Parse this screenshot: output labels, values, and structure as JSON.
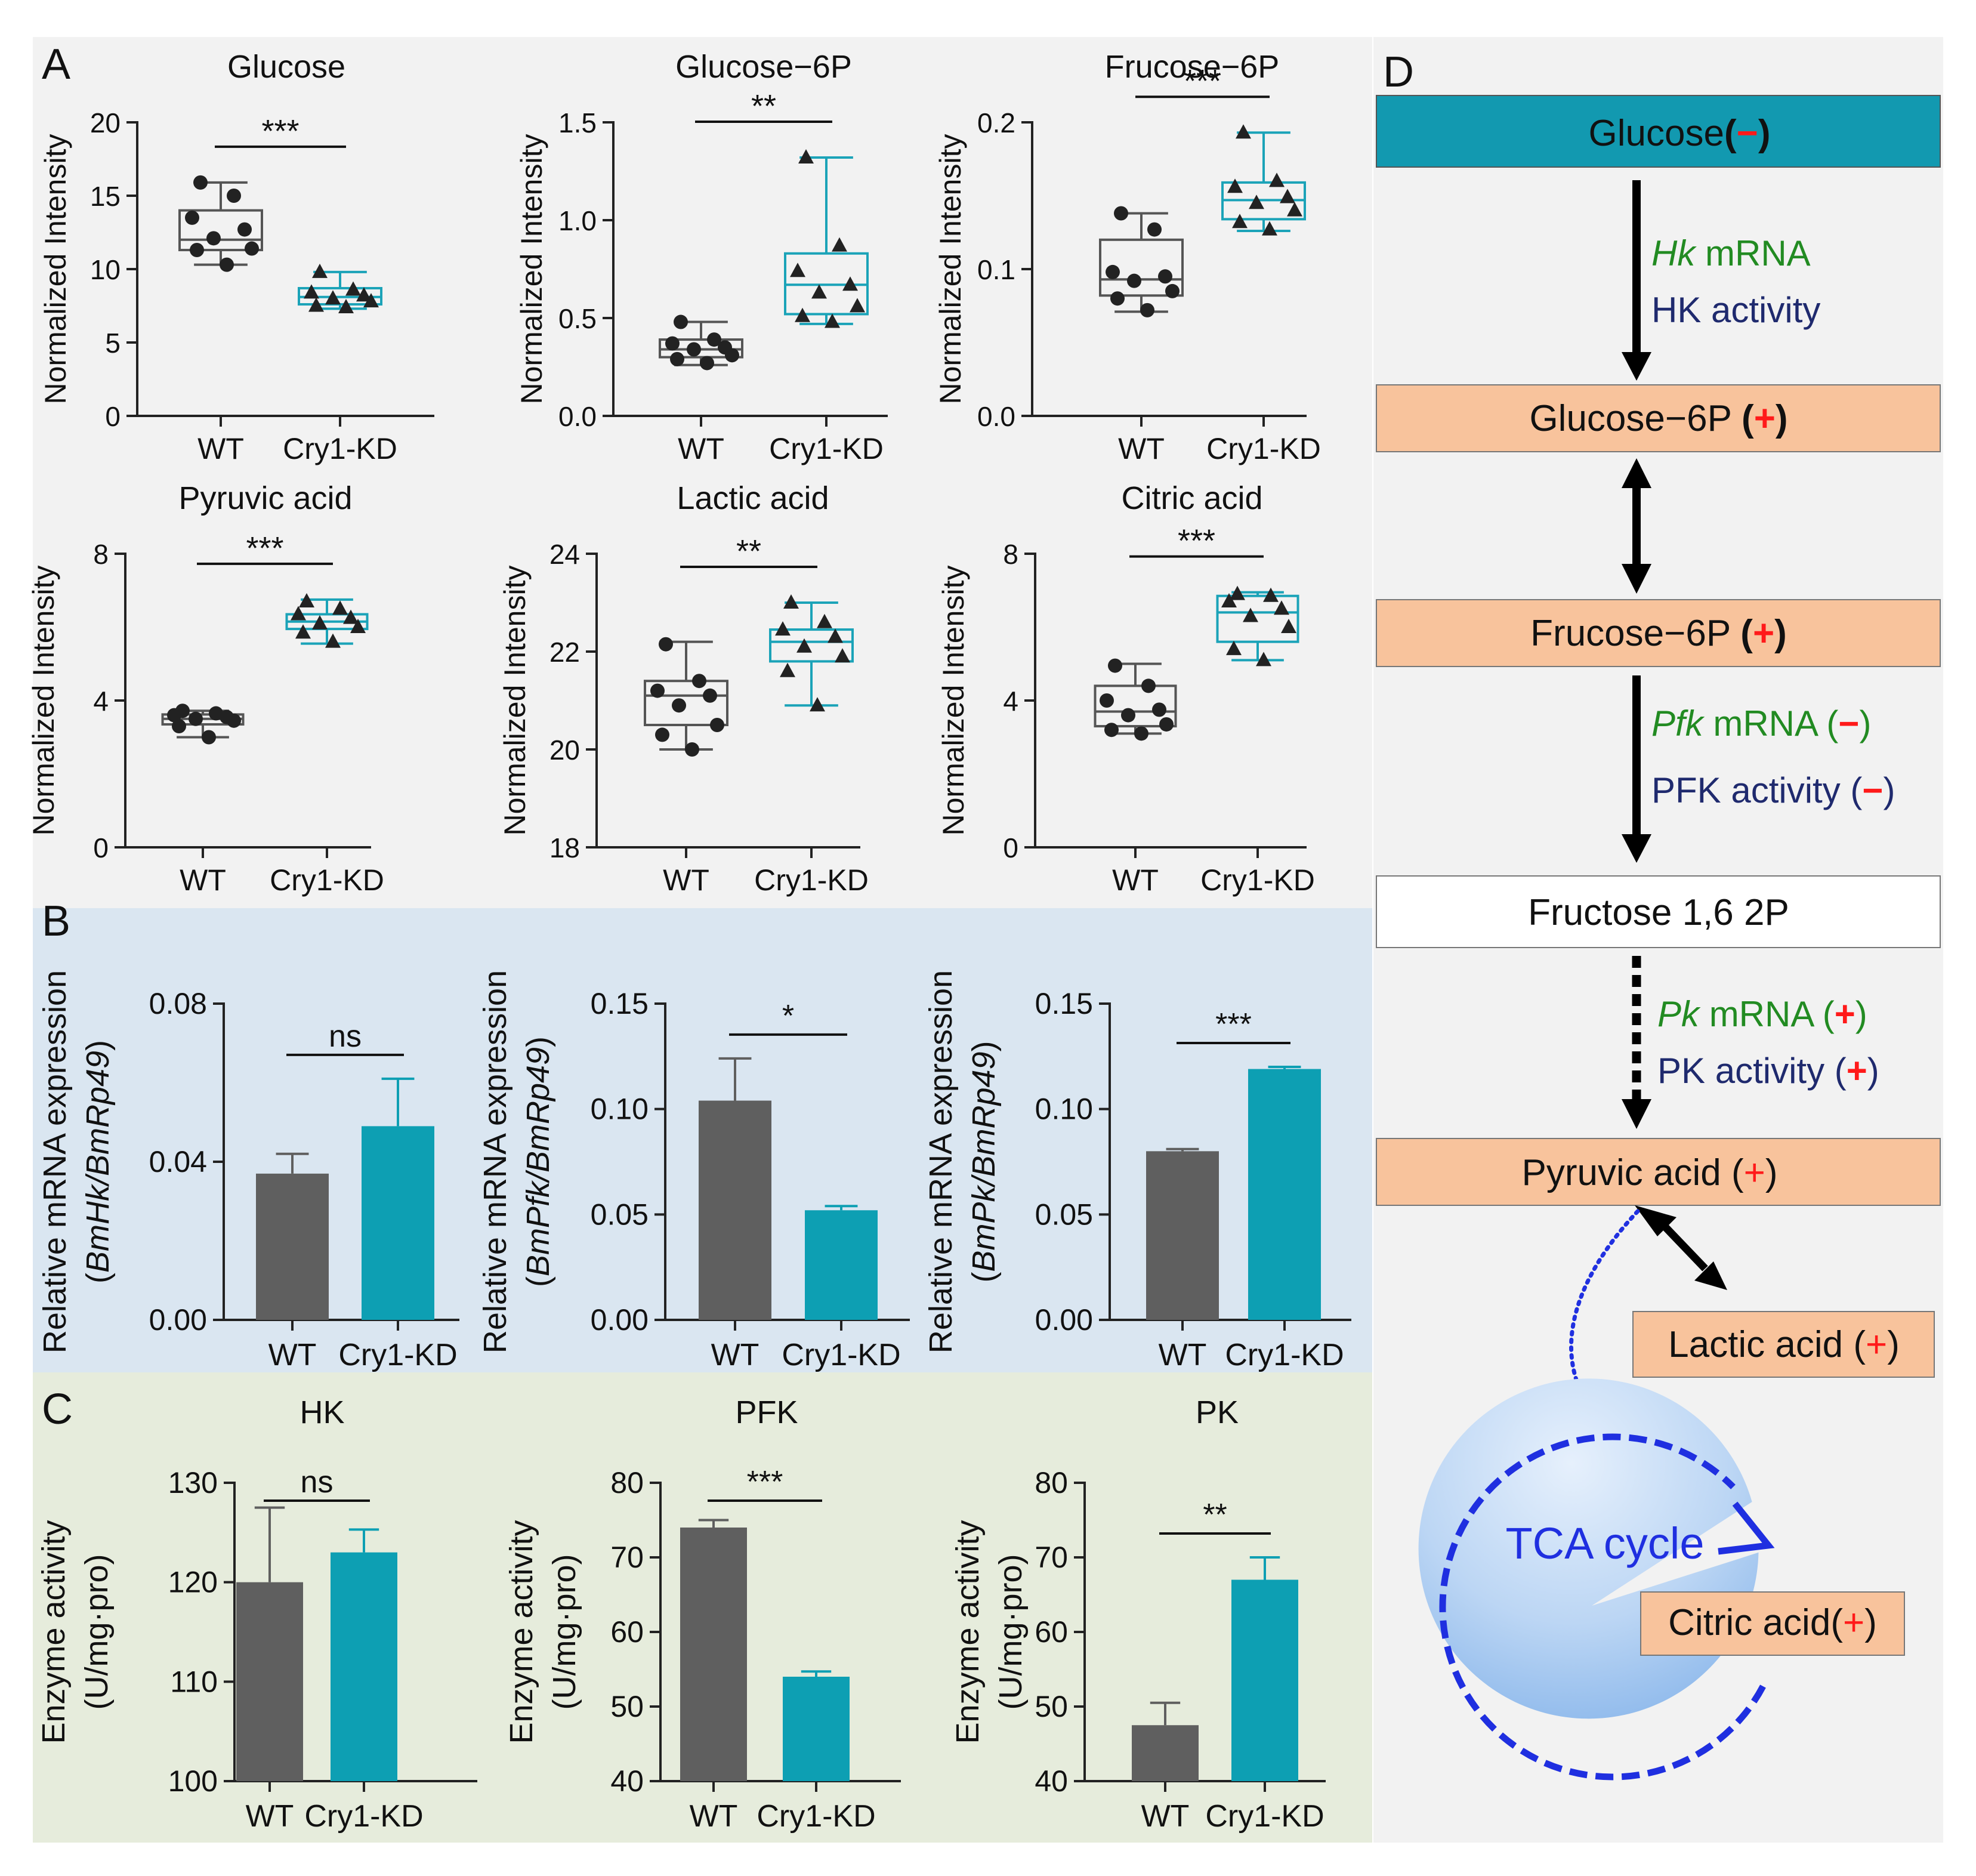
{
  "panel_labels": {
    "a": "A",
    "b": "B",
    "c": "C",
    "d": "D"
  },
  "colors": {
    "wt": "#5f5f5f",
    "kd": "#0d9fb3",
    "box_wt": "#555555",
    "box_kd": "#1ba3b8",
    "panel_a_bg": "#f2f2f2",
    "panel_b_bg": "#dae6f1",
    "panel_c_bg": "#e6ecdc",
    "panel_d_bg": "#f2f2f2",
    "glucose_box": "#1299b0",
    "metabolite_box": "#f8c39c",
    "fructose_box": "#ffffff",
    "tca": "#1f2fe0",
    "plus_minus": "#ff1a1a",
    "mrna_text": "#228b22",
    "activity_text": "#1f2a6e"
  },
  "chart_data": [
    {
      "type": "box",
      "title": "Glucose",
      "ylabel": "Normalized Intensity",
      "categories": [
        "WT",
        "Cry1-KD"
      ],
      "ylim": [
        0,
        20
      ],
      "yticks": [
        0,
        5,
        10,
        15,
        20
      ],
      "ytick_labels": [
        "0",
        "5",
        "10",
        "15",
        "20"
      ],
      "significance": "***",
      "series": [
        {
          "name": "WT",
          "marker": "circle",
          "box": {
            "min": 10.3,
            "q1": 11.3,
            "median": 12.0,
            "q3": 14.0,
            "max": 15.9
          },
          "points": [
            15.9,
            15.0,
            13.5,
            12.7,
            12.1,
            11.4,
            11.3,
            10.3
          ]
        },
        {
          "name": "Cry1-KD",
          "marker": "triangle",
          "box": {
            "min": 7.3,
            "q1": 7.6,
            "median": 8.1,
            "q3": 8.7,
            "max": 9.8
          },
          "points": [
            9.8,
            8.6,
            8.4,
            8.2,
            8.0,
            7.8,
            7.5,
            7.4
          ]
        }
      ]
    },
    {
      "type": "box",
      "title": "Glucose−6P",
      "ylabel": "Normalized Intensity",
      "categories": [
        "WT",
        "Cry1-KD"
      ],
      "ylim": [
        0,
        1.5
      ],
      "yticks": [
        0,
        0.5,
        1.0,
        1.5
      ],
      "ytick_labels": [
        "0.0",
        "0.5",
        "1.0",
        "1.5"
      ],
      "significance": "**",
      "series": [
        {
          "name": "WT",
          "marker": "circle",
          "box": {
            "min": 0.26,
            "q1": 0.3,
            "median": 0.34,
            "q3": 0.39,
            "max": 0.48
          },
          "points": [
            0.48,
            0.39,
            0.37,
            0.35,
            0.34,
            0.31,
            0.29,
            0.27
          ]
        },
        {
          "name": "Cry1-KD",
          "marker": "triangle",
          "box": {
            "min": 0.47,
            "q1": 0.52,
            "median": 0.67,
            "q3": 0.83,
            "max": 1.32
          },
          "points": [
            1.32,
            0.87,
            0.74,
            0.67,
            0.63,
            0.56,
            0.51,
            0.48
          ]
        }
      ]
    },
    {
      "type": "box",
      "title": "Frucose−6P",
      "ylabel": "Normalized Intensity",
      "categories": [
        "WT",
        "Cry1-KD"
      ],
      "ylim": [
        0,
        0.2
      ],
      "yticks": [
        0,
        0.1,
        0.2
      ],
      "ytick_labels": [
        "0.0",
        "0.1",
        "0.2"
      ],
      "significance": "***",
      "series": [
        {
          "name": "WT",
          "marker": "circle",
          "box": {
            "min": 0.071,
            "q1": 0.082,
            "median": 0.093,
            "q3": 0.12,
            "max": 0.138
          },
          "points": [
            0.138,
            0.127,
            0.098,
            0.095,
            0.092,
            0.085,
            0.08,
            0.072
          ]
        },
        {
          "name": "Cry1-KD",
          "marker": "triangle",
          "box": {
            "min": 0.126,
            "q1": 0.134,
            "median": 0.147,
            "q3": 0.159,
            "max": 0.193
          },
          "points": [
            0.193,
            0.16,
            0.156,
            0.149,
            0.145,
            0.14,
            0.132,
            0.127
          ]
        }
      ]
    },
    {
      "type": "box",
      "title": "Pyruvic acid",
      "ylabel": "Normalized Intensity",
      "categories": [
        "WT",
        "Cry1-KD"
      ],
      "ylim": [
        0,
        8
      ],
      "yticks": [
        0,
        4,
        8
      ],
      "ytick_labels": [
        "0",
        "4",
        "8"
      ],
      "significance": "***",
      "series": [
        {
          "name": "WT",
          "marker": "circle",
          "box": {
            "min": 3.0,
            "q1": 3.35,
            "median": 3.5,
            "q3": 3.62,
            "max": 3.72
          },
          "points": [
            3.72,
            3.65,
            3.6,
            3.55,
            3.5,
            3.45,
            3.3,
            3.0
          ]
        },
        {
          "name": "Cry1-KD",
          "marker": "triangle",
          "box": {
            "min": 5.55,
            "q1": 5.95,
            "median": 6.15,
            "q3": 6.35,
            "max": 6.75
          },
          "points": [
            6.7,
            6.5,
            6.35,
            6.25,
            6.1,
            6.0,
            5.85,
            5.6
          ]
        }
      ]
    },
    {
      "type": "box",
      "title": "Lactic acid",
      "ylabel": "Normalized Intensity",
      "categories": [
        "WT",
        "Cry1-KD"
      ],
      "ylim": [
        18,
        24
      ],
      "yticks": [
        18,
        20,
        22,
        24
      ],
      "ytick_labels": [
        "18",
        "20",
        "22",
        "24"
      ],
      "significance": "**",
      "series": [
        {
          "name": "WT",
          "marker": "circle",
          "box": {
            "min": 20.0,
            "q1": 20.5,
            "median": 21.1,
            "q3": 21.4,
            "max": 22.2
          },
          "points": [
            22.15,
            21.4,
            21.2,
            21.1,
            20.9,
            20.5,
            20.3,
            20.0
          ]
        },
        {
          "name": "Cry1-KD",
          "marker": "triangle",
          "box": {
            "min": 20.9,
            "q1": 21.8,
            "median": 22.2,
            "q3": 22.45,
            "max": 23.0
          },
          "points": [
            23.0,
            22.6,
            22.45,
            22.3,
            22.1,
            21.9,
            21.6,
            20.9
          ]
        }
      ]
    },
    {
      "type": "box",
      "title": "Citric acid",
      "ylabel": "Normalized Intensity",
      "categories": [
        "WT",
        "Cry1-KD"
      ],
      "ylim": [
        0,
        8
      ],
      "yticks": [
        0,
        4,
        8
      ],
      "ytick_labels": [
        "0",
        "4",
        "8"
      ],
      "significance": "***",
      "series": [
        {
          "name": "WT",
          "marker": "circle",
          "box": {
            "min": 3.1,
            "q1": 3.3,
            "median": 3.7,
            "q3": 4.4,
            "max": 5.0
          },
          "points": [
            4.95,
            4.4,
            4.0,
            3.75,
            3.6,
            3.35,
            3.2,
            3.1
          ]
        },
        {
          "name": "Cry1-KD",
          "marker": "triangle",
          "box": {
            "min": 5.1,
            "q1": 5.6,
            "median": 6.4,
            "q3": 6.85,
            "max": 6.95
          },
          "points": [
            6.9,
            6.85,
            6.7,
            6.5,
            6.3,
            6.0,
            5.4,
            5.1
          ]
        }
      ]
    },
    {
      "type": "bar",
      "ylabel": "Relative mRNA expression",
      "ylabel2_parts": [
        "(",
        "BmHk/BmRp49",
        ")"
      ],
      "categories": [
        "WT",
        "Cry1-KD"
      ],
      "values": [
        0.037,
        0.049
      ],
      "errors": [
        0.005,
        0.012
      ],
      "ylim": [
        0,
        0.08
      ],
      "yticks": [
        0,
        0.04,
        0.08
      ],
      "ytick_labels": [
        "0.00",
        "0.04",
        "0.08"
      ],
      "significance": "ns"
    },
    {
      "type": "bar",
      "ylabel": "Relative mRNA expression",
      "ylabel2_parts": [
        "(",
        "BmPfk/BmRp49",
        ")"
      ],
      "categories": [
        "WT",
        "Cry1-KD"
      ],
      "values": [
        0.104,
        0.052
      ],
      "errors": [
        0.02,
        0.002
      ],
      "ylim": [
        0,
        0.15
      ],
      "yticks": [
        0,
        0.05,
        0.1,
        0.15
      ],
      "ytick_labels": [
        "0.00",
        "0.05",
        "0.10",
        "0.15"
      ],
      "significance": "*"
    },
    {
      "type": "bar",
      "ylabel": "Relative mRNA expression",
      "ylabel2_parts": [
        "(",
        "BmPk/BmRp49",
        ")"
      ],
      "categories": [
        "WT",
        "Cry1-KD"
      ],
      "values": [
        0.08,
        0.119
      ],
      "errors": [
        0.001,
        0.001
      ],
      "ylim": [
        0,
        0.15
      ],
      "yticks": [
        0,
        0.05,
        0.1,
        0.15
      ],
      "ytick_labels": [
        "0.00",
        "0.05",
        "0.10",
        "0.15"
      ],
      "significance": "***"
    },
    {
      "type": "bar",
      "title": "HK",
      "ylabel": "Enzyme activity",
      "ylabel2_parts": [
        "",
        "(U/mg·pro)",
        ""
      ],
      "categories": [
        "WT",
        "Cry1-KD"
      ],
      "values": [
        120,
        123
      ],
      "errors": [
        7.5,
        2.3
      ],
      "ylim": [
        100,
        130
      ],
      "yticks": [
        100,
        110,
        120,
        130
      ],
      "ytick_labels": [
        "100",
        "110",
        "120",
        "130"
      ],
      "significance": "ns"
    },
    {
      "type": "bar",
      "title": "PFK",
      "ylabel": "Enzyme activity",
      "ylabel2_parts": [
        "",
        "(U/mg·pro)",
        ""
      ],
      "categories": [
        "WT",
        "Cry1-KD"
      ],
      "values": [
        74,
        54
      ],
      "errors": [
        1,
        0.7
      ],
      "ylim": [
        40,
        80
      ],
      "yticks": [
        40,
        50,
        60,
        70,
        80
      ],
      "ytick_labels": [
        "40",
        "50",
        "60",
        "70",
        "80"
      ],
      "significance": "***"
    },
    {
      "type": "bar",
      "title": "PK",
      "ylabel": "Enzyme activity",
      "ylabel2_parts": [
        "",
        "(U/mg·pro)",
        ""
      ],
      "categories": [
        "WT",
        "Cry1-KD"
      ],
      "values": [
        47.5,
        67
      ],
      "errors": [
        3,
        3
      ],
      "ylim": [
        40,
        80
      ],
      "yticks": [
        40,
        50,
        60,
        70,
        80
      ],
      "ytick_labels": [
        "40",
        "50",
        "60",
        "70",
        "80"
      ],
      "significance": "**"
    }
  ],
  "pathway": {
    "glucose": {
      "name": "Glucose",
      "paren_open": "(",
      "sign": "−",
      "paren_close": ")"
    },
    "glucose6p": {
      "name": "Glucose−6P ",
      "paren_open": "(",
      "sign": "+",
      "paren_close": ")"
    },
    "fructose6p": {
      "name": "Frucose−6P ",
      "paren_open": "(",
      "sign": "+",
      "paren_close": ")"
    },
    "fructose16": {
      "name": "Fructose 1,6 2P"
    },
    "pyruvic": {
      "name": "Pyruvic acid ",
      "paren_open": "(",
      "sign": "+",
      "paren_close": ")"
    },
    "lactic": {
      "name": "Lactic acid ",
      "paren_open": "(",
      "sign": "+",
      "paren_close": ")"
    },
    "citric": {
      "name": "Citric acid",
      "paren_open": "(",
      "sign": "+",
      "paren_close": ")"
    },
    "tca": "TCA cycle",
    "hk_gene": "Hk",
    "hk_mrna": " mRNA",
    "hk_activity": "HK activity",
    "pfk_gene": "Pfk",
    "pfk_mrna": " mRNA ",
    "pfk_sign": "−",
    "pfk_activity": "PFK activity ",
    "pfk_activity_sign": "−",
    "pk_gene": "Pk",
    "pk_mrna": " mRNA ",
    "pk_sign": "+",
    "pk_activity": "PK activity ",
    "pk_activity_sign": "+",
    "paren_open": "(",
    "paren_close": ")"
  }
}
